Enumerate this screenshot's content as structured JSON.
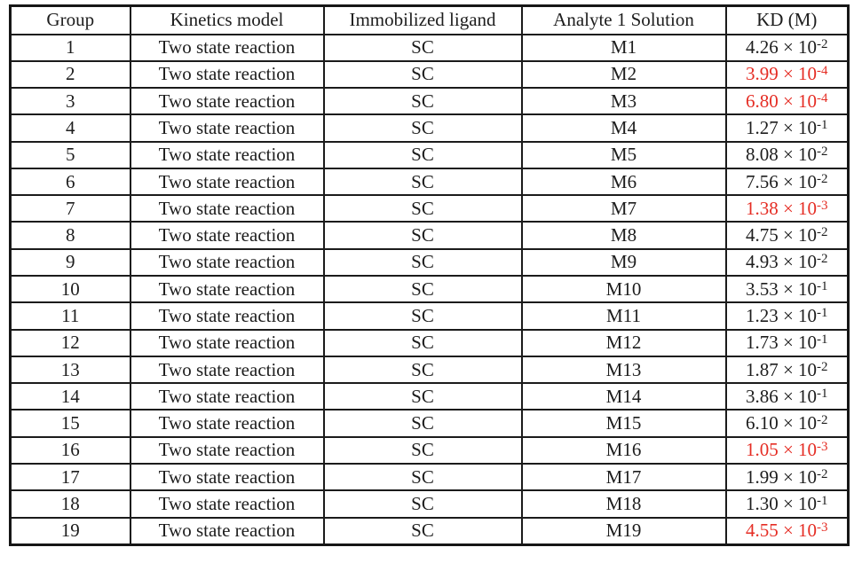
{
  "table": {
    "highlight_color": "#e52d24",
    "text_color": "#1d1d1d",
    "columns": [
      "Group",
      "Kinetics model",
      "Immobilized ligand",
      "Analyte 1 Solution",
      "KD (M)"
    ],
    "rows": [
      {
        "group": "1",
        "model": "Two state reaction",
        "ligand": "SC",
        "analyte": "M1",
        "kd": {
          "base": "4.26 × 10",
          "exp": "-2",
          "red": false
        }
      },
      {
        "group": "2",
        "model": "Two state reaction",
        "ligand": "SC",
        "analyte": "M2",
        "kd": {
          "base": "3.99 × 10",
          "exp": "-4",
          "red": true
        }
      },
      {
        "group": "3",
        "model": "Two state reaction",
        "ligand": "SC",
        "analyte": "M3",
        "kd": {
          "base": "6.80 × 10",
          "exp": "-4",
          "red": true
        }
      },
      {
        "group": "4",
        "model": "Two state reaction",
        "ligand": "SC",
        "analyte": "M4",
        "kd": {
          "base": "1.27 × 10",
          "exp": "-1",
          "red": false
        }
      },
      {
        "group": "5",
        "model": "Two state reaction",
        "ligand": "SC",
        "analyte": "M5",
        "kd": {
          "base": "8.08 × 10",
          "exp": "-2",
          "red": false
        }
      },
      {
        "group": "6",
        "model": "Two state reaction",
        "ligand": "SC",
        "analyte": "M6",
        "kd": {
          "base": "7.56 × 10",
          "exp": "-2",
          "red": false
        }
      },
      {
        "group": "7",
        "model": "Two state reaction",
        "ligand": "SC",
        "analyte": "M7",
        "kd": {
          "base": "1.38 × 10",
          "exp": "-3",
          "red": true
        }
      },
      {
        "group": "8",
        "model": "Two state reaction",
        "ligand": "SC",
        "analyte": "M8",
        "kd": {
          "base": "4.75 × 10",
          "exp": "-2",
          "red": false
        }
      },
      {
        "group": "9",
        "model": "Two state reaction",
        "ligand": "SC",
        "analyte": "M9",
        "kd": {
          "base": "4.93 × 10",
          "exp": "-2",
          "red": false
        }
      },
      {
        "group": "10",
        "model": "Two state reaction",
        "ligand": "SC",
        "analyte": "M10",
        "kd": {
          "base": "3.53 × 10",
          "exp": "-1",
          "red": false
        }
      },
      {
        "group": "11",
        "model": "Two state reaction",
        "ligand": "SC",
        "analyte": "M11",
        "kd": {
          "base": "1.23 × 10",
          "exp": "-1",
          "red": false
        }
      },
      {
        "group": "12",
        "model": "Two state reaction",
        "ligand": "SC",
        "analyte": "M12",
        "kd": {
          "base": "1.73 × 10",
          "exp": "-1",
          "red": false
        }
      },
      {
        "group": "13",
        "model": "Two state reaction",
        "ligand": "SC",
        "analyte": "M13",
        "kd": {
          "base": "1.87 × 10",
          "exp": "-2",
          "red": false
        }
      },
      {
        "group": "14",
        "model": "Two state reaction",
        "ligand": "SC",
        "analyte": "M14",
        "kd": {
          "base": "3.86 × 10",
          "exp": "-1",
          "red": false
        }
      },
      {
        "group": "15",
        "model": "Two state reaction",
        "ligand": "SC",
        "analyte": "M15",
        "kd": {
          "base": "6.10 × 10",
          "exp": "-2",
          "red": false
        }
      },
      {
        "group": "16",
        "model": "Two state reaction",
        "ligand": "SC",
        "analyte": "M16",
        "kd": {
          "base": "1.05 × 10",
          "exp": "-3",
          "red": true
        }
      },
      {
        "group": "17",
        "model": "Two state reaction",
        "ligand": "SC",
        "analyte": "M17",
        "kd": {
          "base": "1.99 × 10",
          "exp": "-2",
          "red": false
        }
      },
      {
        "group": "18",
        "model": "Two state reaction",
        "ligand": "SC",
        "analyte": "M18",
        "kd": {
          "base": "1.30 × 10",
          "exp": "-1",
          "red": false
        }
      },
      {
        "group": "19",
        "model": "Two state reaction",
        "ligand": "SC",
        "analyte": "M19",
        "kd": {
          "base": "4.55 × 10",
          "exp": "-3",
          "red": true
        }
      }
    ]
  }
}
